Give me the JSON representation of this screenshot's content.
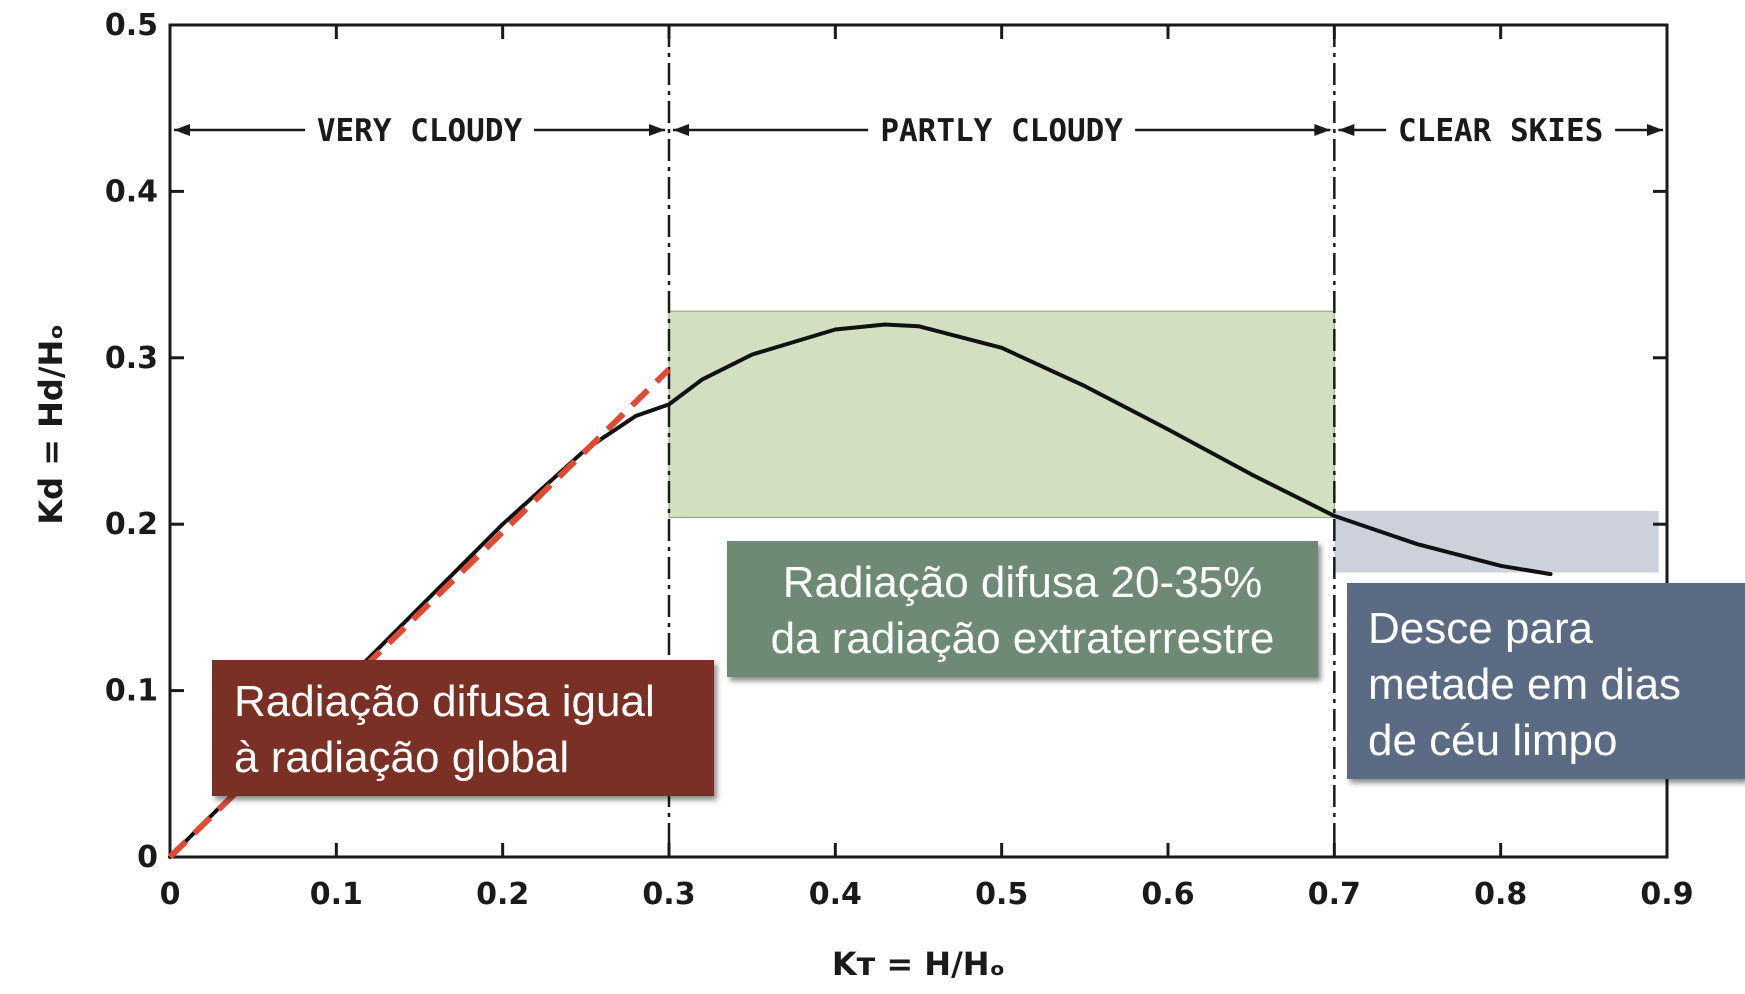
{
  "chart_data": {
    "type": "line",
    "xlabel": "Kᴛ = H/Hₒ",
    "ylabel": "Kd = Hd/Hₒ",
    "xlim": [
      0,
      0.9
    ],
    "ylim": [
      0,
      0.5
    ],
    "x_ticks": [
      "0",
      "0.1",
      "0.2",
      "0.3",
      "0.4",
      "0.5",
      "0.6",
      "0.7",
      "0.8",
      "0.9"
    ],
    "y_ticks": [
      "0",
      "0.1",
      "0.2",
      "0.3",
      "0.4",
      "0.5"
    ],
    "grid": false,
    "series": [
      {
        "style": "solid",
        "color": "#111111",
        "x": [
          0.0,
          0.05,
          0.1,
          0.15,
          0.2,
          0.25,
          0.28,
          0.3,
          0.32,
          0.35,
          0.4,
          0.43,
          0.45,
          0.5,
          0.55,
          0.6,
          0.65,
          0.7,
          0.75,
          0.8,
          0.83
        ],
        "y": [
          0.0,
          0.05,
          0.1,
          0.15,
          0.2,
          0.245,
          0.265,
          0.272,
          0.287,
          0.302,
          0.317,
          0.32,
          0.319,
          0.306,
          0.283,
          0.257,
          0.23,
          0.205,
          0.188,
          0.175,
          0.17
        ]
      },
      {
        "style": "dashed",
        "color": "#e04a34",
        "x": [
          0.0,
          0.3
        ],
        "y": [
          0.0,
          0.293
        ]
      }
    ],
    "region_boundaries": [
      0.3,
      0.7
    ],
    "regions": [
      {
        "label": "VERY CLOUDY",
        "from": 0.0,
        "to": 0.3
      },
      {
        "label": "PARTLY CLOUDY",
        "from": 0.3,
        "to": 0.7
      },
      {
        "label": "CLEAR SKIES",
        "from": 0.7,
        "to": 0.9
      }
    ],
    "highlights": [
      {
        "x_from": 0.3,
        "x_to": 0.7,
        "y_from": 0.204,
        "y_to": 0.328,
        "color": "#c5d6ae"
      },
      {
        "x_from": 0.7,
        "x_to": 0.895,
        "y_from": 0.171,
        "y_to": 0.208,
        "color": "#c8ccd8"
      }
    ],
    "annotations": [
      {
        "lines": [
          "Radiação difusa igual",
          "à radiação global"
        ],
        "color": "#7a3024"
      },
      {
        "lines": [
          "Radiação difusa 20-35%",
          "da radiação extraterrestre"
        ],
        "color": "#6e8a74"
      },
      {
        "lines": [
          "Desce para",
          "metade em dias",
          "de céu limpo"
        ],
        "color": "#5b6b83"
      }
    ]
  }
}
